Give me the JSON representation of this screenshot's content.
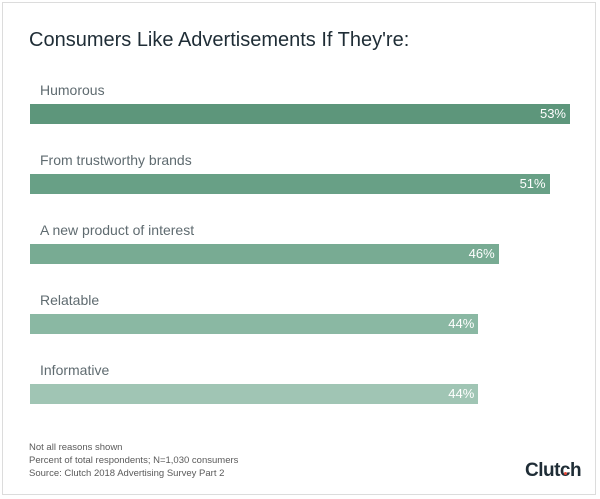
{
  "chart_data": {
    "type": "bar",
    "orientation": "horizontal",
    "title": "Consumers Like Advertisements If They're:",
    "categories": [
      "Humorous",
      "From trustworthy brands",
      "A new product of interest",
      "Relatable",
      "Informative"
    ],
    "values": [
      53,
      51,
      46,
      44,
      44
    ],
    "value_labels": [
      "53%",
      "51%",
      "46%",
      "44%",
      "44%"
    ],
    "colors": [
      "#5d967b",
      "#68a086",
      "#78ab93",
      "#8ab8a3",
      "#a0c5b4"
    ],
    "grid": false
  },
  "footnotes": [
    "Not all reasons shown",
    "Percent of total respondents; N=1,030 consumers",
    "Source: Clutch 2018 Advertising Survey Part 2"
  ],
  "logo": "Clutch"
}
